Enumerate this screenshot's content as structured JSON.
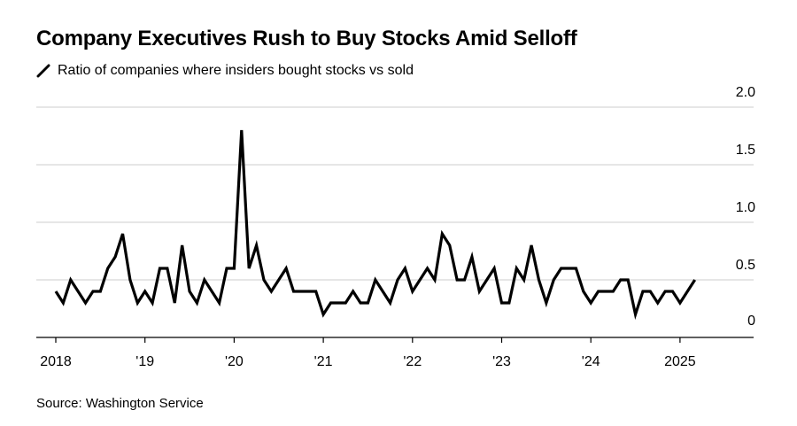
{
  "title": "Company Executives Rush to Buy Stocks Amid Selloff",
  "subtitle": "Ratio of companies where insiders bought stocks vs sold",
  "source": "Source: Washington Service",
  "colors": {
    "line": "#000000",
    "grid": "#cccccc",
    "axis": "#000000"
  },
  "chart_data": {
    "type": "line",
    "title": "Company Executives Rush to Buy Stocks Amid Selloff",
    "subtitle": "Ratio of companies where insiders bought stocks vs sold",
    "ylim": [
      0,
      2.0
    ],
    "xlim": [
      "2018-01",
      "2025-12"
    ],
    "grid": true,
    "y_axis_side": "right",
    "y_ticks": [
      0,
      0.5,
      1.0,
      1.5,
      2.0
    ],
    "y_tick_labels": [
      "0",
      "0.5",
      "1.0",
      "1.5",
      "2.0"
    ],
    "x_ticks": [
      "2018-01",
      "2019-01",
      "2020-01",
      "2021-01",
      "2022-01",
      "2023-01",
      "2024-01",
      "2025-01"
    ],
    "x_tick_labels": [
      "2018",
      "'19",
      "'20",
      "'21",
      "'22",
      "'23",
      "'24",
      "2025"
    ],
    "series": [
      {
        "x": [
          "2018-01",
          "2018-02",
          "2018-03",
          "2018-04",
          "2018-05",
          "2018-06",
          "2018-07",
          "2018-08",
          "2018-09",
          "2018-10",
          "2018-11",
          "2018-12",
          "2019-01",
          "2019-02",
          "2019-03",
          "2019-04",
          "2019-05",
          "2019-06",
          "2019-07",
          "2019-08",
          "2019-09",
          "2019-10",
          "2019-11",
          "2019-12",
          "2020-01",
          "2020-02",
          "2020-03",
          "2020-04",
          "2020-05",
          "2020-06",
          "2020-07",
          "2020-08",
          "2020-09",
          "2020-10",
          "2020-11",
          "2020-12",
          "2021-01",
          "2021-02",
          "2021-03",
          "2021-04",
          "2021-05",
          "2021-06",
          "2021-07",
          "2021-08",
          "2021-09",
          "2021-10",
          "2021-11",
          "2021-12",
          "2022-01",
          "2022-02",
          "2022-03",
          "2022-04",
          "2022-05",
          "2022-06",
          "2022-07",
          "2022-08",
          "2022-09",
          "2022-10",
          "2022-11",
          "2022-12",
          "2023-01",
          "2023-02",
          "2023-03",
          "2023-04",
          "2023-05",
          "2023-06",
          "2023-07",
          "2023-08",
          "2023-09",
          "2023-10",
          "2023-11",
          "2023-12",
          "2024-01",
          "2024-02",
          "2024-03",
          "2024-04",
          "2024-05",
          "2024-06",
          "2024-07",
          "2024-08",
          "2024-09",
          "2024-10",
          "2024-11",
          "2024-12",
          "2025-01",
          "2025-02",
          "2025-03"
        ],
        "values": [
          0.4,
          0.3,
          0.5,
          0.4,
          0.3,
          0.4,
          0.4,
          0.6,
          0.7,
          0.9,
          0.5,
          0.3,
          0.4,
          0.3,
          0.6,
          0.6,
          0.3,
          0.8,
          0.4,
          0.3,
          0.5,
          0.4,
          0.3,
          0.6,
          0.6,
          1.8,
          0.6,
          0.8,
          0.5,
          0.4,
          0.5,
          0.6,
          0.4,
          0.4,
          0.4,
          0.4,
          0.2,
          0.3,
          0.3,
          0.3,
          0.4,
          0.3,
          0.3,
          0.5,
          0.4,
          0.3,
          0.5,
          0.6,
          0.4,
          0.5,
          0.6,
          0.5,
          0.9,
          0.8,
          0.5,
          0.5,
          0.7,
          0.4,
          0.5,
          0.6,
          0.3,
          0.3,
          0.6,
          0.5,
          0.8,
          0.5,
          0.3,
          0.5,
          0.6,
          0.6,
          0.6,
          0.4,
          0.3,
          0.4,
          0.4,
          0.4,
          0.5,
          0.5,
          0.2,
          0.4,
          0.4,
          0.3,
          0.4,
          0.4,
          0.3,
          0.4,
          0.5
        ]
      }
    ]
  }
}
